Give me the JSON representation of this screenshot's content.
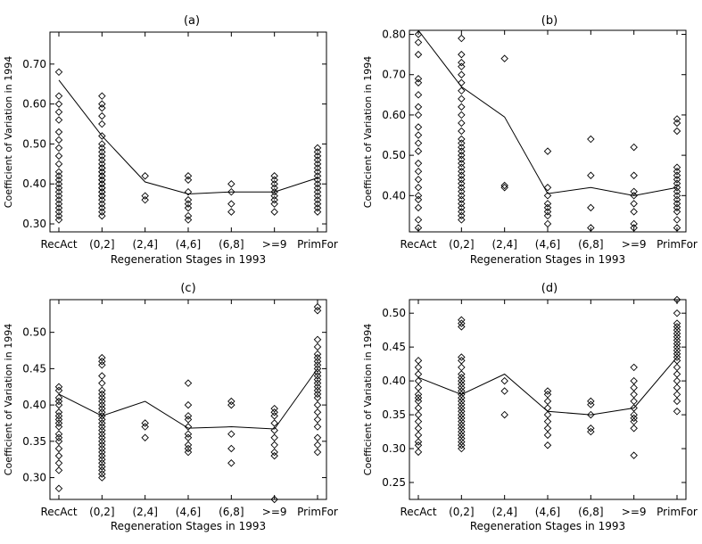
{
  "chart_data": [
    {
      "type": "scatter",
      "title": "(a)",
      "xlabel": "Regeneration Stages in 1993",
      "ylabel": "Coefficient of Variation in 1994",
      "categories": [
        "RecAct",
        "(0,2]",
        "(2,4]",
        "(4,6]",
        "(6,8]",
        ">=9",
        "PrimFor"
      ],
      "ylim": [
        0.28,
        0.78
      ],
      "yticks": [
        0.3,
        0.4,
        0.5,
        0.6,
        0.7
      ],
      "ytick_labels": [
        "0.30",
        "0.40",
        "0.50",
        "0.60",
        "0.70"
      ],
      "mean_line": [
        0.66,
        0.52,
        0.405,
        0.375,
        0.38,
        0.38,
        0.415
      ],
      "points": [
        [
          0.31,
          0.32,
          0.33,
          0.34,
          0.35,
          0.36,
          0.37,
          0.38,
          0.39,
          0.4,
          0.41,
          0.42,
          0.43,
          0.45,
          0.47,
          0.49,
          0.51,
          0.53,
          0.56,
          0.58,
          0.6,
          0.62,
          0.68
        ],
        [
          0.32,
          0.33,
          0.34,
          0.35,
          0.36,
          0.37,
          0.37,
          0.38,
          0.38,
          0.39,
          0.39,
          0.4,
          0.4,
          0.41,
          0.41,
          0.42,
          0.42,
          0.43,
          0.43,
          0.44,
          0.44,
          0.45,
          0.46,
          0.47,
          0.48,
          0.49,
          0.5,
          0.52,
          0.55,
          0.57,
          0.59,
          0.6,
          0.62
        ],
        [
          0.36,
          0.37,
          0.42
        ],
        [
          0.31,
          0.32,
          0.34,
          0.35,
          0.36,
          0.38,
          0.41,
          0.42
        ],
        [
          0.33,
          0.35,
          0.38,
          0.4
        ],
        [
          0.33,
          0.35,
          0.36,
          0.37,
          0.38,
          0.39,
          0.4,
          0.41,
          0.42
        ],
        [
          0.33,
          0.34,
          0.35,
          0.36,
          0.37,
          0.38,
          0.39,
          0.4,
          0.41,
          0.42,
          0.43,
          0.44,
          0.45,
          0.46,
          0.47,
          0.48,
          0.49
        ]
      ]
    },
    {
      "type": "scatter",
      "title": "(b)",
      "xlabel": "Regeneration Stages in 1993",
      "ylabel": "Coefficient of Variation in 1994",
      "categories": [
        "RecAct",
        "(0,2]",
        "(2,4]",
        "(4,6]",
        "(6,8]",
        ">=9",
        "PrimFor"
      ],
      "ylim": [
        0.31,
        0.81
      ],
      "yticks": [
        0.4,
        0.5,
        0.6,
        0.7,
        0.8
      ],
      "ytick_labels": [
        "0.40",
        "0.50",
        "0.60",
        "0.70",
        "0.80"
      ],
      "mean_line": [
        0.81,
        0.67,
        0.595,
        0.405,
        0.42,
        0.4,
        0.42
      ],
      "points": [
        [
          0.32,
          0.34,
          0.37,
          0.39,
          0.4,
          0.42,
          0.44,
          0.46,
          0.48,
          0.51,
          0.53,
          0.55,
          0.57,
          0.6,
          0.62,
          0.65,
          0.68,
          0.69,
          0.75,
          0.78,
          0.8
        ],
        [
          0.34,
          0.35,
          0.36,
          0.37,
          0.38,
          0.39,
          0.4,
          0.41,
          0.42,
          0.43,
          0.44,
          0.45,
          0.46,
          0.47,
          0.48,
          0.49,
          0.5,
          0.51,
          0.52,
          0.53,
          0.54,
          0.56,
          0.58,
          0.6,
          0.62,
          0.64,
          0.66,
          0.68,
          0.7,
          0.72,
          0.73,
          0.75,
          0.79
        ],
        [
          0.42,
          0.425,
          0.74
        ],
        [
          0.33,
          0.35,
          0.36,
          0.37,
          0.38,
          0.4,
          0.42,
          0.51
        ],
        [
          0.32,
          0.37,
          0.45,
          0.54
        ],
        [
          0.32,
          0.33,
          0.36,
          0.38,
          0.4,
          0.41,
          0.45,
          0.52
        ],
        [
          0.32,
          0.34,
          0.36,
          0.37,
          0.38,
          0.39,
          0.4,
          0.41,
          0.42,
          0.43,
          0.44,
          0.45,
          0.46,
          0.47,
          0.56,
          0.58,
          0.59
        ]
      ]
    },
    {
      "type": "scatter",
      "title": "(c)",
      "xlabel": "Regeneration Stages in 1993",
      "ylabel": "Coefficient of Variation in 1994",
      "categories": [
        "RecAct",
        "(0,2]",
        "(2,4]",
        "(4,6]",
        "(6,8]",
        ">=9",
        "PrimFor"
      ],
      "ylim": [
        0.27,
        0.545
      ],
      "yticks": [
        0.3,
        0.35,
        0.4,
        0.45,
        0.5
      ],
      "ytick_labels": [
        "0.30",
        "0.35",
        "0.40",
        "0.45",
        "0.50"
      ],
      "mean_line": [
        0.415,
        0.385,
        0.405,
        0.368,
        0.37,
        0.367,
        0.45
      ],
      "points": [
        [
          0.285,
          0.31,
          0.32,
          0.33,
          0.34,
          0.35,
          0.355,
          0.36,
          0.37,
          0.375,
          0.38,
          0.385,
          0.39,
          0.4,
          0.405,
          0.41,
          0.42,
          0.425
        ],
        [
          0.3,
          0.305,
          0.31,
          0.315,
          0.32,
          0.325,
          0.33,
          0.335,
          0.34,
          0.345,
          0.35,
          0.355,
          0.36,
          0.365,
          0.37,
          0.375,
          0.38,
          0.385,
          0.39,
          0.395,
          0.4,
          0.405,
          0.41,
          0.415,
          0.42,
          0.43,
          0.44,
          0.455,
          0.46,
          0.465
        ],
        [
          0.355,
          0.37,
          0.375
        ],
        [
          0.335,
          0.34,
          0.345,
          0.355,
          0.36,
          0.37,
          0.38,
          0.385,
          0.4,
          0.43
        ],
        [
          0.32,
          0.34,
          0.36,
          0.4,
          0.405
        ],
        [
          0.27,
          0.33,
          0.335,
          0.345,
          0.355,
          0.365,
          0.375,
          0.385,
          0.39,
          0.395
        ],
        [
          0.335,
          0.345,
          0.355,
          0.37,
          0.38,
          0.39,
          0.4,
          0.41,
          0.415,
          0.42,
          0.425,
          0.43,
          0.435,
          0.44,
          0.445,
          0.45,
          0.455,
          0.46,
          0.465,
          0.47,
          0.48,
          0.49,
          0.53,
          0.535
        ]
      ]
    },
    {
      "type": "scatter",
      "title": "(d)",
      "xlabel": "Regeneration Stages in 1993",
      "ylabel": "Coefficient of Variation in 1994",
      "categories": [
        "RecAct",
        "(0,2]",
        "(2,4]",
        "(4,6]",
        "(6,8]",
        ">=9",
        "PrimFor"
      ],
      "ylim": [
        0.225,
        0.52
      ],
      "yticks": [
        0.25,
        0.3,
        0.35,
        0.4,
        0.45,
        0.5
      ],
      "ytick_labels": [
        "0.25",
        "0.30",
        "0.35",
        "0.40",
        "0.45",
        "0.50"
      ],
      "mean_line": [
        0.405,
        0.38,
        0.41,
        0.355,
        0.35,
        0.36,
        0.435
      ],
      "points": [
        [
          0.295,
          0.305,
          0.31,
          0.32,
          0.33,
          0.34,
          0.35,
          0.36,
          0.37,
          0.375,
          0.38,
          0.39,
          0.4,
          0.41,
          0.42,
          0.43
        ],
        [
          0.3,
          0.305,
          0.31,
          0.315,
          0.32,
          0.325,
          0.33,
          0.335,
          0.34,
          0.345,
          0.35,
          0.355,
          0.36,
          0.365,
          0.37,
          0.375,
          0.38,
          0.385,
          0.39,
          0.395,
          0.4,
          0.405,
          0.41,
          0.42,
          0.43,
          0.435,
          0.48,
          0.485,
          0.49
        ],
        [
          0.35,
          0.385,
          0.4
        ],
        [
          0.305,
          0.32,
          0.33,
          0.34,
          0.35,
          0.36,
          0.37,
          0.38,
          0.385
        ],
        [
          0.325,
          0.33,
          0.35,
          0.365,
          0.37
        ],
        [
          0.29,
          0.33,
          0.34,
          0.345,
          0.35,
          0.36,
          0.37,
          0.38,
          0.39,
          0.4,
          0.42
        ],
        [
          0.355,
          0.37,
          0.38,
          0.39,
          0.4,
          0.41,
          0.42,
          0.43,
          0.435,
          0.44,
          0.445,
          0.45,
          0.455,
          0.46,
          0.465,
          0.47,
          0.475,
          0.48,
          0.485,
          0.5,
          0.52
        ]
      ]
    }
  ]
}
